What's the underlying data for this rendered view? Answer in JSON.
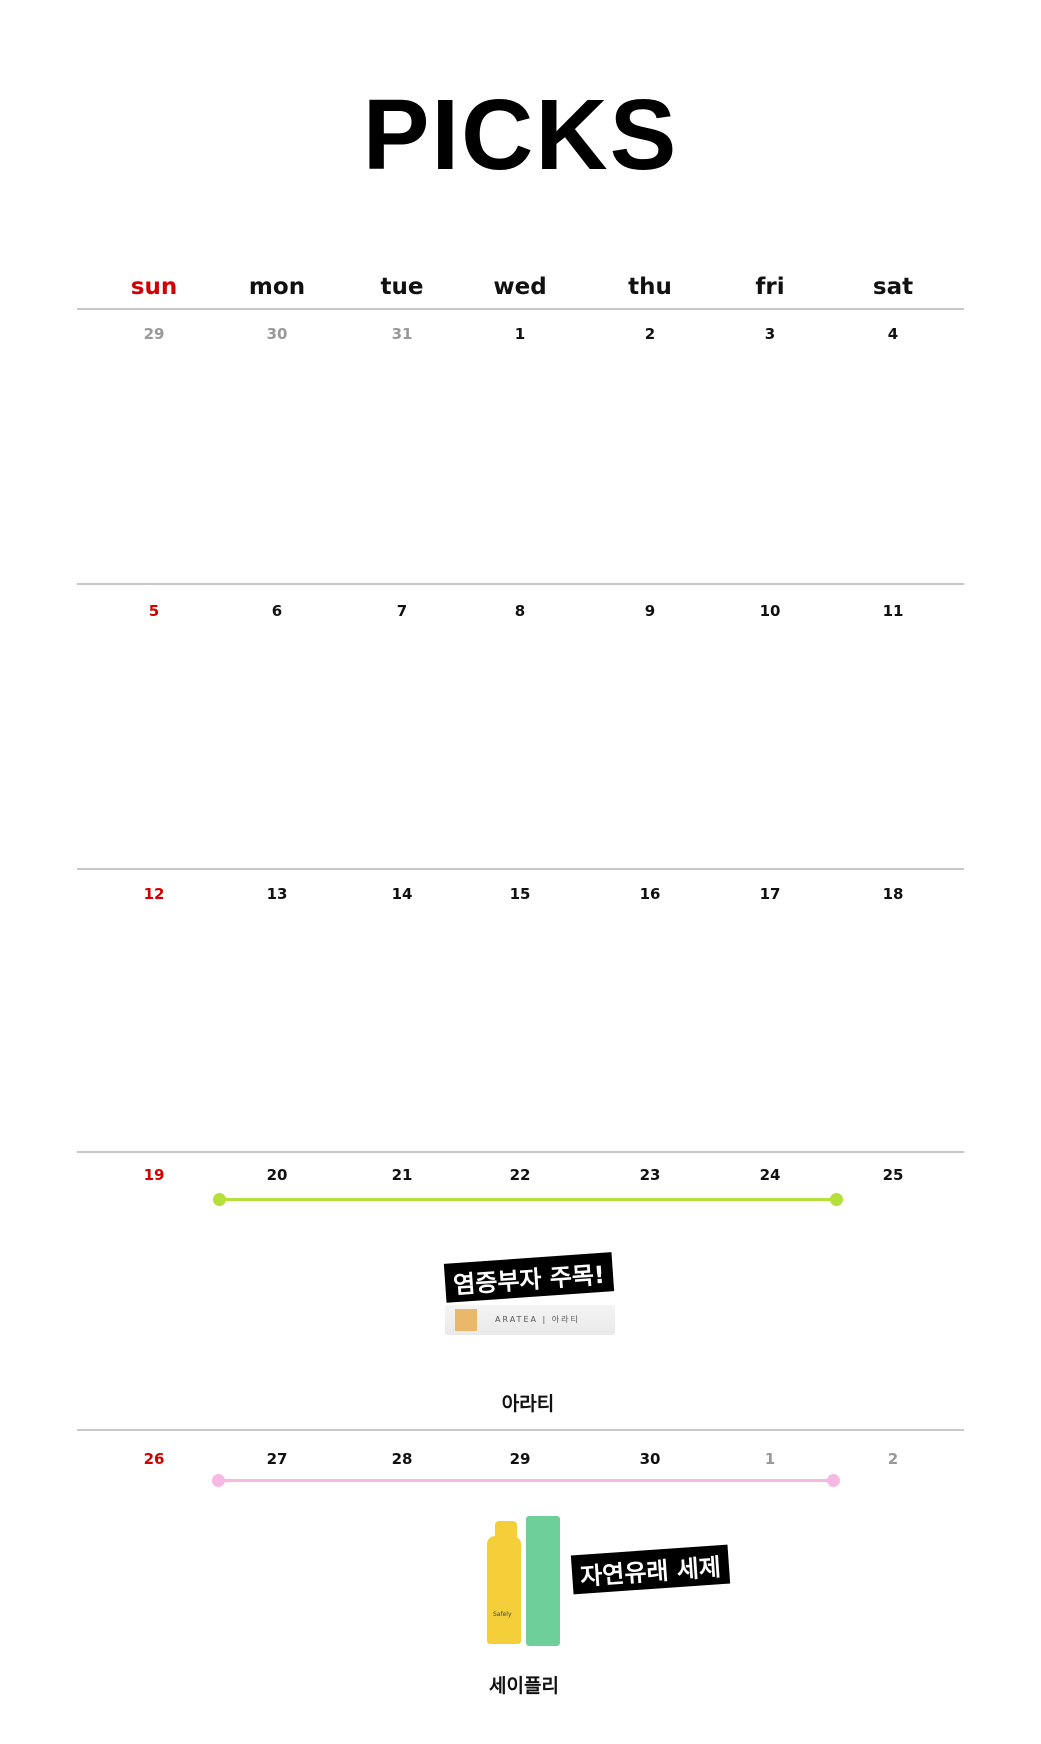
{
  "title": "PICKS",
  "weekdays": [
    "sun",
    "mon",
    "tue",
    "wed",
    "thu",
    "fri",
    "sat"
  ],
  "weeks": [
    [
      "29",
      "30",
      "31",
      "1",
      "2",
      "3",
      "4"
    ],
    [
      "5",
      "6",
      "7",
      "8",
      "9",
      "10",
      "11"
    ],
    [
      "12",
      "13",
      "14",
      "15",
      "16",
      "17",
      "18"
    ],
    [
      "19",
      "20",
      "21",
      "22",
      "23",
      "24",
      "25"
    ],
    [
      "26",
      "27",
      "28",
      "29",
      "30",
      "1",
      "2"
    ]
  ],
  "colors": {
    "sunday": "#d40000",
    "other_month": "#999999",
    "event1": "#b5e03a",
    "event2": "#f7b9e3"
  },
  "events": [
    {
      "tag": "염증부자 주목!",
      "product_brand": "ARATEA | 아라티",
      "label": "아라티",
      "range": "20-24"
    },
    {
      "tag": "자연유래 세제",
      "product_brand": "Safely",
      "label": "세이플리",
      "range": "27-1"
    }
  ]
}
